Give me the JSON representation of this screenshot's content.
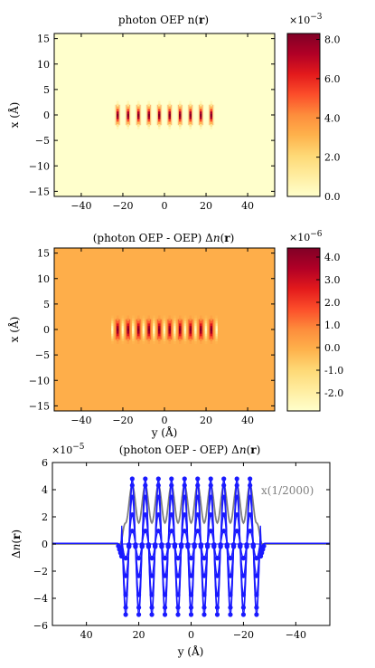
{
  "chart_data": [
    {
      "type": "heatmap",
      "title": "photon OEP n(r)",
      "xlabel": "",
      "ylabel": "x (Å)",
      "xlim": [
        -53,
        53
      ],
      "ylim": [
        -16,
        16
      ],
      "x_ticks": [
        "−40",
        "−20",
        "0",
        "20",
        "40"
      ],
      "y_ticks": [
        "15",
        "10",
        "5",
        "0",
        "−5",
        "−10",
        "−15"
      ],
      "colormap": [
        "#ffffcc",
        "#ffeda0",
        "#fed976",
        "#feb24c",
        "#fd8d3c",
        "#fc4e2a",
        "#e31a1c",
        "#b10026",
        "#800026"
      ],
      "colorbar": {
        "exponent": "×10−3",
        "range": [
          0.0,
          8.3
        ],
        "ticks": [
          "8.0",
          "6.0",
          "4.0",
          "2.0",
          "0.0"
        ],
        "tick_values": [
          8.0,
          6.0,
          4.0,
          2.0,
          0.0
        ]
      },
      "peaks": {
        "count": 10,
        "y_start": -22.5,
        "y_end": 22.5,
        "max_value": 8.2
      }
    },
    {
      "type": "heatmap",
      "title": "(photon OEP - OEP) Δn(r)",
      "xlabel": "y (Å)",
      "ylabel": "x (Å)",
      "xlim": [
        -53,
        53
      ],
      "ylim": [
        -16,
        16
      ],
      "x_ticks": [
        "−40",
        "−20",
        "0",
        "20",
        "40"
      ],
      "y_ticks": [
        "15",
        "10",
        "5",
        "0",
        "−5",
        "−10",
        "−15"
      ],
      "colorbar": {
        "exponent": "×10−6",
        "range": [
          -2.8,
          4.4
        ],
        "ticks": [
          "4.0",
          "3.0",
          "2.0",
          "1.0",
          "0.0",
          "-1.0",
          "-2.0"
        ],
        "tick_values": [
          4.0,
          3.0,
          2.0,
          1.0,
          0.0,
          -1.0,
          -2.0
        ]
      },
      "peaks": {
        "count": 10,
        "y_start": -22.5,
        "y_end": 22.5,
        "max_value": 4.3,
        "min_value": -2.6
      }
    },
    {
      "type": "line",
      "title": "(photon OEP - OEP) Δn(r)",
      "xlabel": "y (Å)",
      "ylabel": "Δn(r)",
      "xlim": [
        53,
        -53
      ],
      "ylim": [
        -6,
        6
      ],
      "y_exponent": "×10−5",
      "x_ticks": [
        "40",
        "20",
        "0",
        "−20",
        "−40"
      ],
      "y_ticks": [
        "6",
        "4",
        "2",
        "0",
        "−2",
        "−4",
        "−6"
      ],
      "annotation": "x(1/2000)",
      "series": [
        {
          "color": "#1a1aff",
          "markers": true,
          "peak_positions": [
            -22.5,
            -17.5,
            -12.5,
            -7.5,
            -2.5,
            2.5,
            7.5,
            12.5,
            17.5,
            22.5
          ],
          "max": 4.8,
          "min": -5.2
        },
        {
          "color": "#808080",
          "markers": false,
          "peak": 4.3
        }
      ]
    }
  ]
}
